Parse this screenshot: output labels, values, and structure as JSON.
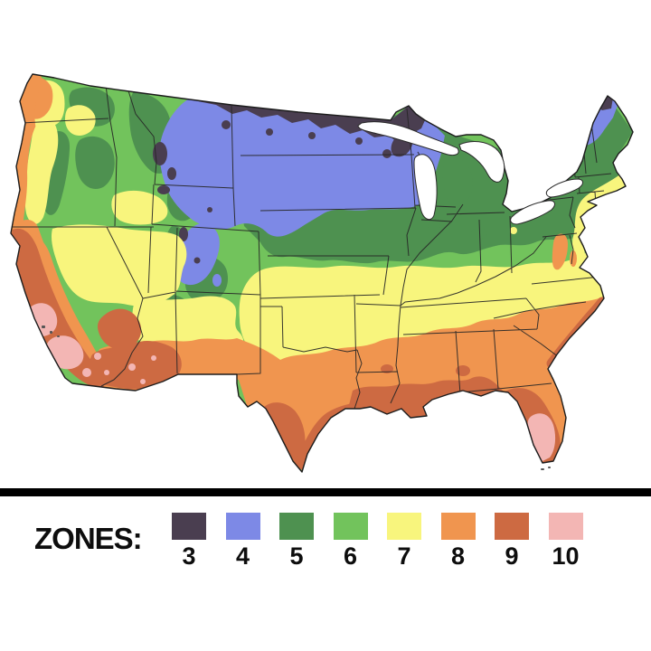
{
  "map": {
    "region_label": "contiguous United States",
    "kind": "plant hardiness zone map"
  },
  "legend": {
    "label": "ZONES:",
    "zones": [
      {
        "number": "3",
        "color": "#4a3e50"
      },
      {
        "number": "4",
        "color": "#7d89e6"
      },
      {
        "number": "5",
        "color": "#4e9150"
      },
      {
        "number": "6",
        "color": "#72c35c"
      },
      {
        "number": "7",
        "color": "#f8f57d"
      },
      {
        "number": "8",
        "color": "#f0954f"
      },
      {
        "number": "9",
        "color": "#cd6a42"
      },
      {
        "number": "10",
        "color": "#f3b6b4"
      }
    ]
  },
  "colors": {
    "divider": "#000000",
    "background": "#ffffff",
    "border_lines": "#262626"
  }
}
